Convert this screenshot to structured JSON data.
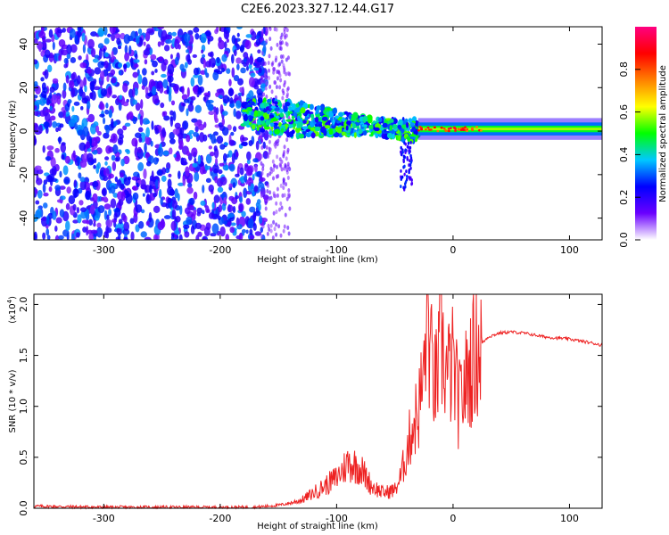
{
  "figure": {
    "title": "C2E6.2023.327.12.44.G17"
  },
  "chart_data": [
    {
      "type": "heatmap",
      "xlabel": "Height of straight line (km)",
      "ylabel": "Frequency (Hz)",
      "xlim": [
        -360,
        128
      ],
      "ylim": [
        -50,
        48
      ],
      "xticks": [
        -300,
        -200,
        -100,
        0,
        100
      ],
      "xtick_labels": [
        "-300",
        "-200",
        "-100",
        "0",
        "100"
      ],
      "yticks": [
        -40,
        -20,
        0,
        20,
        40
      ],
      "ytick_labels": [
        "-40",
        "-20",
        "0",
        "20",
        "40"
      ],
      "colorbar": {
        "label": "Normalized spectral amplitude",
        "range": [
          0,
          1
        ],
        "ticks": [
          0.0,
          0.2,
          0.4,
          0.6,
          0.8
        ],
        "tick_labels": [
          "0.0",
          "0.2",
          "0.4",
          "0.6",
          "0.8"
        ],
        "colormap": [
          "#ffffff",
          "#6a00ff",
          "#0000ff",
          "#00c8ff",
          "#00ff00",
          "#ffff00",
          "#ff8000",
          "#ff0000",
          "#ff0080"
        ]
      },
      "regions": [
        {
          "x_range": [
            -360,
            -160
          ],
          "description_level": "noise",
          "amplitude": 0.25
        },
        {
          "x_range": [
            -180,
            -30
          ],
          "center_freq_start": 8,
          "center_freq_end": 0,
          "amplitude": 0.45
        },
        {
          "x_range": [
            -30,
            128
          ],
          "center_freq": 1,
          "amplitude": 0.5
        }
      ]
    },
    {
      "type": "line",
      "xlabel": "Height of straight line (km)",
      "ylabel": "SNR (10 * v/v)",
      "y_multiplier_label": "(x10",
      "y_multiplier_exp": "4",
      "y_multiplier_close": ")",
      "xlim": [
        -360,
        128
      ],
      "ylim": [
        0,
        2.1
      ],
      "xticks": [
        -300,
        -200,
        -100,
        0,
        100
      ],
      "xtick_labels": [
        "-300",
        "-200",
        "-100",
        "0",
        "100"
      ],
      "yticks": [
        0.0,
        0.5,
        1.0,
        1.5,
        2.0
      ],
      "ytick_labels": [
        "0.0",
        "0.5",
        "1.0",
        "1.5",
        "2.0"
      ],
      "color": "#ee2222",
      "series": [
        {
          "x": [
            -360,
            -300,
            -250,
            -200,
            -170,
            -150,
            -140,
            -130,
            -120,
            -110,
            -100,
            -90,
            -80,
            -70,
            -60,
            -50,
            -45,
            -40,
            -35,
            -30,
            -25,
            -22,
            -20,
            -15,
            -10,
            -5,
            0,
            5,
            10,
            15,
            20,
            25,
            30,
            40,
            50,
            60,
            70,
            80,
            90,
            100,
            110,
            120,
            128
          ],
          "y": [
            0.02,
            0.01,
            0.01,
            0.01,
            0.01,
            0.03,
            0.05,
            0.08,
            0.15,
            0.22,
            0.3,
            0.45,
            0.4,
            0.22,
            0.15,
            0.18,
            0.3,
            0.55,
            0.8,
            0.95,
            1.3,
            2.1,
            1.5,
            1.2,
            1.6,
            1.3,
            1.4,
            1.0,
            1.2,
            1.4,
            1.55,
            1.62,
            1.68,
            1.72,
            1.73,
            1.72,
            1.7,
            1.68,
            1.67,
            1.66,
            1.64,
            1.62,
            1.6
          ]
        }
      ]
    }
  ]
}
